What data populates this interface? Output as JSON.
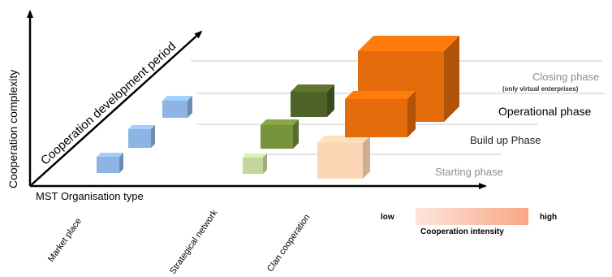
{
  "y_axis_label": "Cooperation complexity",
  "diagonal_axis_label": "Cooperation development period",
  "x_axis_label": "MST Organisation type",
  "organisation_types": [
    "Market place",
    "Strategical network",
    "Clan cooperation"
  ],
  "phases": [
    {
      "label": "Starting phase",
      "color": "#8d8d8d"
    },
    {
      "label": "Build up Phase",
      "color": "#222222"
    },
    {
      "label": "Operational phase",
      "color": "#000000"
    },
    {
      "label": "Closing phase",
      "color": "#8d8d8d",
      "note": "(only virtual enterprises)"
    }
  ],
  "cubes": [
    {
      "type": "Market place",
      "phase": "Starting phase",
      "color": "#8db4e2"
    },
    {
      "type": "Market place",
      "phase": "Build up Phase",
      "color": "#8db4e2"
    },
    {
      "type": "Market place",
      "phase": "Operational phase",
      "color": "#8db4e2"
    },
    {
      "type": "Strategical network",
      "phase": "Starting phase",
      "color": "#c4d79b"
    },
    {
      "type": "Strategical network",
      "phase": "Build up Phase",
      "color": "#77933c"
    },
    {
      "type": "Strategical network",
      "phase": "Operational phase",
      "color": "#4f6228"
    },
    {
      "type": "Clan cooperation",
      "phase": "Starting phase",
      "color": "#fcd5b4"
    },
    {
      "type": "Clan cooperation",
      "phase": "Operational phase",
      "color": "#e46c0a"
    },
    {
      "type": "Clan cooperation",
      "phase": "Closing phase",
      "color": "#e46c0a"
    }
  ],
  "legend": {
    "low_label": "low",
    "high_label": "high",
    "title": "Cooperation intensity",
    "low_color": "#fde5dc",
    "high_color": "#f8a685"
  }
}
